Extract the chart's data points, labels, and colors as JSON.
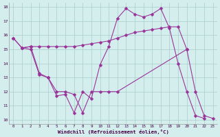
{
  "line1_x": [
    0,
    1,
    2,
    3,
    4,
    5,
    6,
    7,
    8,
    9,
    10,
    11,
    12,
    13,
    14,
    15,
    16,
    17,
    18,
    19,
    20
  ],
  "line1_y": [
    15.8,
    15.1,
    15.2,
    15.2,
    15.2,
    15.2,
    15.2,
    15.2,
    15.3,
    15.4,
    15.5,
    15.6,
    15.8,
    16.0,
    16.2,
    16.3,
    16.4,
    16.5,
    16.6,
    16.6,
    15.0
  ],
  "line2_x": [
    0,
    1,
    2,
    3,
    4,
    5,
    6,
    7,
    8,
    9,
    10,
    11,
    12,
    13,
    14,
    15,
    16,
    17,
    18,
    19,
    20,
    21,
    22,
    23
  ],
  "line2_y": [
    15.8,
    15.1,
    15.2,
    13.3,
    13.0,
    11.7,
    11.8,
    10.5,
    12.0,
    11.5,
    13.9,
    15.2,
    17.2,
    17.9,
    17.5,
    17.3,
    17.5,
    17.9,
    16.5,
    14.0,
    12.0,
    10.3,
    10.1,
    null
  ],
  "line3_x": [
    1,
    2,
    3,
    4,
    5,
    6,
    7,
    8,
    9,
    10,
    11,
    12,
    20,
    21,
    22,
    23
  ],
  "line3_y": [
    15.1,
    15.0,
    13.2,
    13.0,
    12.0,
    12.0,
    11.8,
    10.5,
    12.0,
    12.0,
    12.0,
    12.0,
    15.0,
    12.0,
    10.3,
    10.1
  ],
  "line_color": "#993399",
  "background_color": "#d4eeee",
  "grid_color": "#aacccc",
  "xlabel": "Windchill (Refroidissement éolien,°C)",
  "xlim_min": -0.5,
  "xlim_max": 23.5,
  "ylim_min": 9.7,
  "ylim_max": 18.3,
  "yticks": [
    10,
    11,
    12,
    13,
    14,
    15,
    16,
    17,
    18
  ],
  "xticks": [
    0,
    1,
    2,
    3,
    4,
    5,
    6,
    7,
    8,
    9,
    10,
    11,
    12,
    13,
    14,
    15,
    16,
    17,
    18,
    19,
    20,
    21,
    22,
    23
  ],
  "markersize": 2.5
}
